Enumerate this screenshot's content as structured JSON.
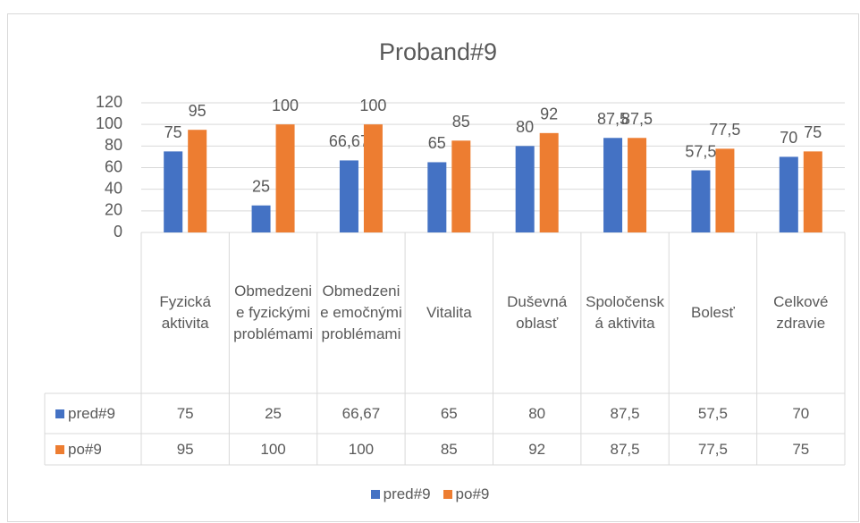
{
  "chart_data": {
    "type": "bar",
    "title": "Proband#9",
    "categories": [
      "Fyzická aktivita",
      "Obmedzenie fyzickými problémami",
      "Obmedzenie emočnými problémami",
      "Vitalita",
      "Duševná oblasť",
      "Spoločenská aktivita",
      "Bolesť",
      "Celkové zdravie"
    ],
    "series": [
      {
        "name": "pred#9",
        "color": "#4472c4",
        "values": [
          75,
          25,
          66.67,
          65,
          80,
          87.5,
          57.5,
          70
        ],
        "value_labels": [
          "75",
          "25",
          "66,67",
          "65",
          "80",
          "87,5",
          "57,5",
          "70"
        ]
      },
      {
        "name": "po#9",
        "color": "#ed7d31",
        "values": [
          95,
          100,
          100,
          85,
          92,
          87.5,
          77.5,
          75
        ],
        "value_labels": [
          "95",
          "100",
          "100",
          "85",
          "92",
          "87,5",
          "77,5",
          "75"
        ]
      }
    ],
    "ylim": [
      0,
      120
    ],
    "yticks": [
      0,
      20,
      40,
      60,
      80,
      100,
      120
    ],
    "grid": true,
    "legend": "bottom"
  }
}
